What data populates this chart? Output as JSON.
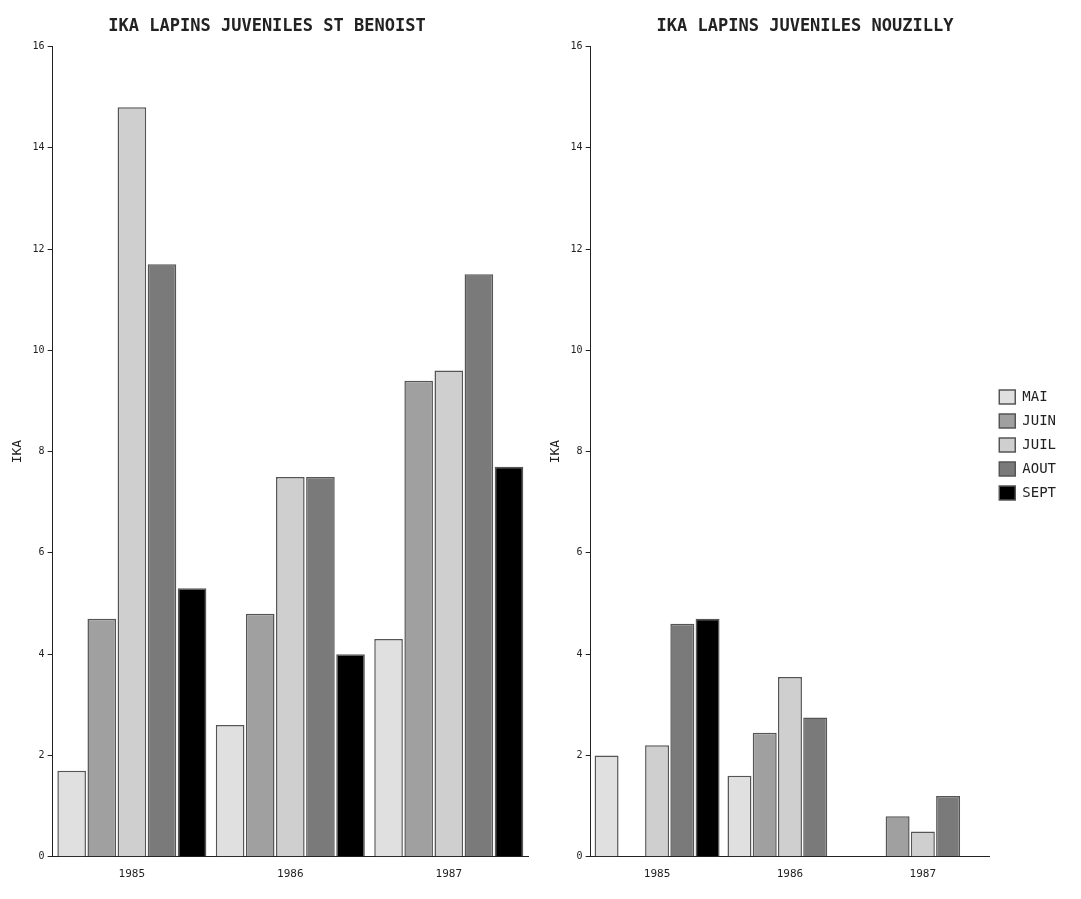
{
  "chart_data": [
    {
      "type": "bar",
      "title": "IKA LAPINS JUVENILES ST BENOIST",
      "ylabel": "IKA",
      "categories": [
        "1985",
        "1986",
        "1987"
      ],
      "series": [
        {
          "color": "#e0e0e0",
          "values": [
            1.7,
            2.6,
            4.3
          ]
        },
        {
          "color": "#a0a0a0",
          "values": [
            4.7,
            4.8,
            9.4
          ]
        },
        {
          "color": "#cfcfcf",
          "values": [
            14.8,
            7.5,
            9.6
          ]
        },
        {
          "color": "#7a7a7a",
          "values": [
            11.7,
            7.5,
            11.5
          ]
        },
        {
          "color": "#000000",
          "values": [
            5.3,
            4.0,
            7.7
          ]
        }
      ],
      "ylim": [
        0,
        16
      ],
      "yticks": [
        0,
        2,
        4,
        6,
        8,
        10,
        12,
        14,
        16
      ],
      "grid": false,
      "legend": false
    },
    {
      "type": "bar",
      "title": "IKA LAPINS JUVENILES NOUZILLY",
      "ylabel": "IKA",
      "categories": [
        "1985",
        "1986",
        "1987"
      ],
      "series": [
        {
          "name": "MAI",
          "color": "#e0e0e0",
          "values": [
            2.0,
            1.6,
            null
          ]
        },
        {
          "name": "JUIN",
          "color": "#a0a0a0",
          "values": [
            null,
            2.45,
            0.8
          ]
        },
        {
          "name": "JUIL",
          "color": "#cfcfcf",
          "values": [
            2.2,
            3.55,
            0.5
          ]
        },
        {
          "name": "AOUT",
          "color": "#7a7a7a",
          "values": [
            4.6,
            2.75,
            1.2
          ]
        },
        {
          "name": "SEPT",
          "color": "#000000",
          "values": [
            4.7,
            null,
            null
          ]
        }
      ],
      "ylim": [
        0,
        16
      ],
      "yticks": [
        0,
        2,
        4,
        6,
        8,
        10,
        12,
        14,
        16
      ],
      "grid": false,
      "legend": "right"
    }
  ]
}
